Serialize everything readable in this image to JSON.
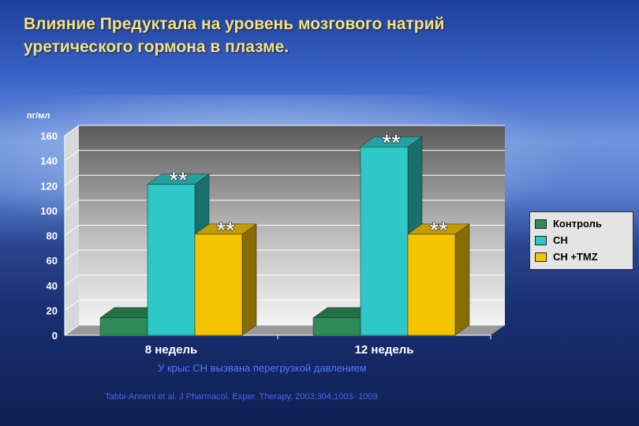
{
  "title_lines": [
    "Влияние Предуктала  на уровень мозгового натрий",
    "уретического гормона в плазме."
  ],
  "footnote": "У крыс СН вызвана перегрузкой давлением",
  "citation": "Tabbi-Anneni et al. J Pharmacol. Exper. Therapy, 2003;304,1003- 1009",
  "chart_data": {
    "type": "bar",
    "ylabel": "пг/мл",
    "ylim": [
      0,
      160
    ],
    "yticks": [
      "0",
      "20",
      "40",
      "60",
      "80",
      "100",
      "120",
      "140",
      "160"
    ],
    "categories": [
      "8 недель",
      "12 недель"
    ],
    "series": [
      {
        "name": "Контроль",
        "values": [
          14,
          14
        ],
        "color": "#2e8b57"
      },
      {
        "name": "СН",
        "values": [
          121,
          151
        ],
        "color": "#2ec8c8"
      },
      {
        "name": "СН +TMZ",
        "values": [
          81,
          81
        ],
        "color": "#f5c400"
      }
    ],
    "annotations": [
      {
        "category": 0,
        "series": 1,
        "text": "**"
      },
      {
        "category": 0,
        "series": 2,
        "text": "**"
      },
      {
        "category": 1,
        "series": 1,
        "text": "**"
      },
      {
        "category": 1,
        "series": 2,
        "text": "**"
      }
    ],
    "legend_position": "right",
    "grid": true
  }
}
